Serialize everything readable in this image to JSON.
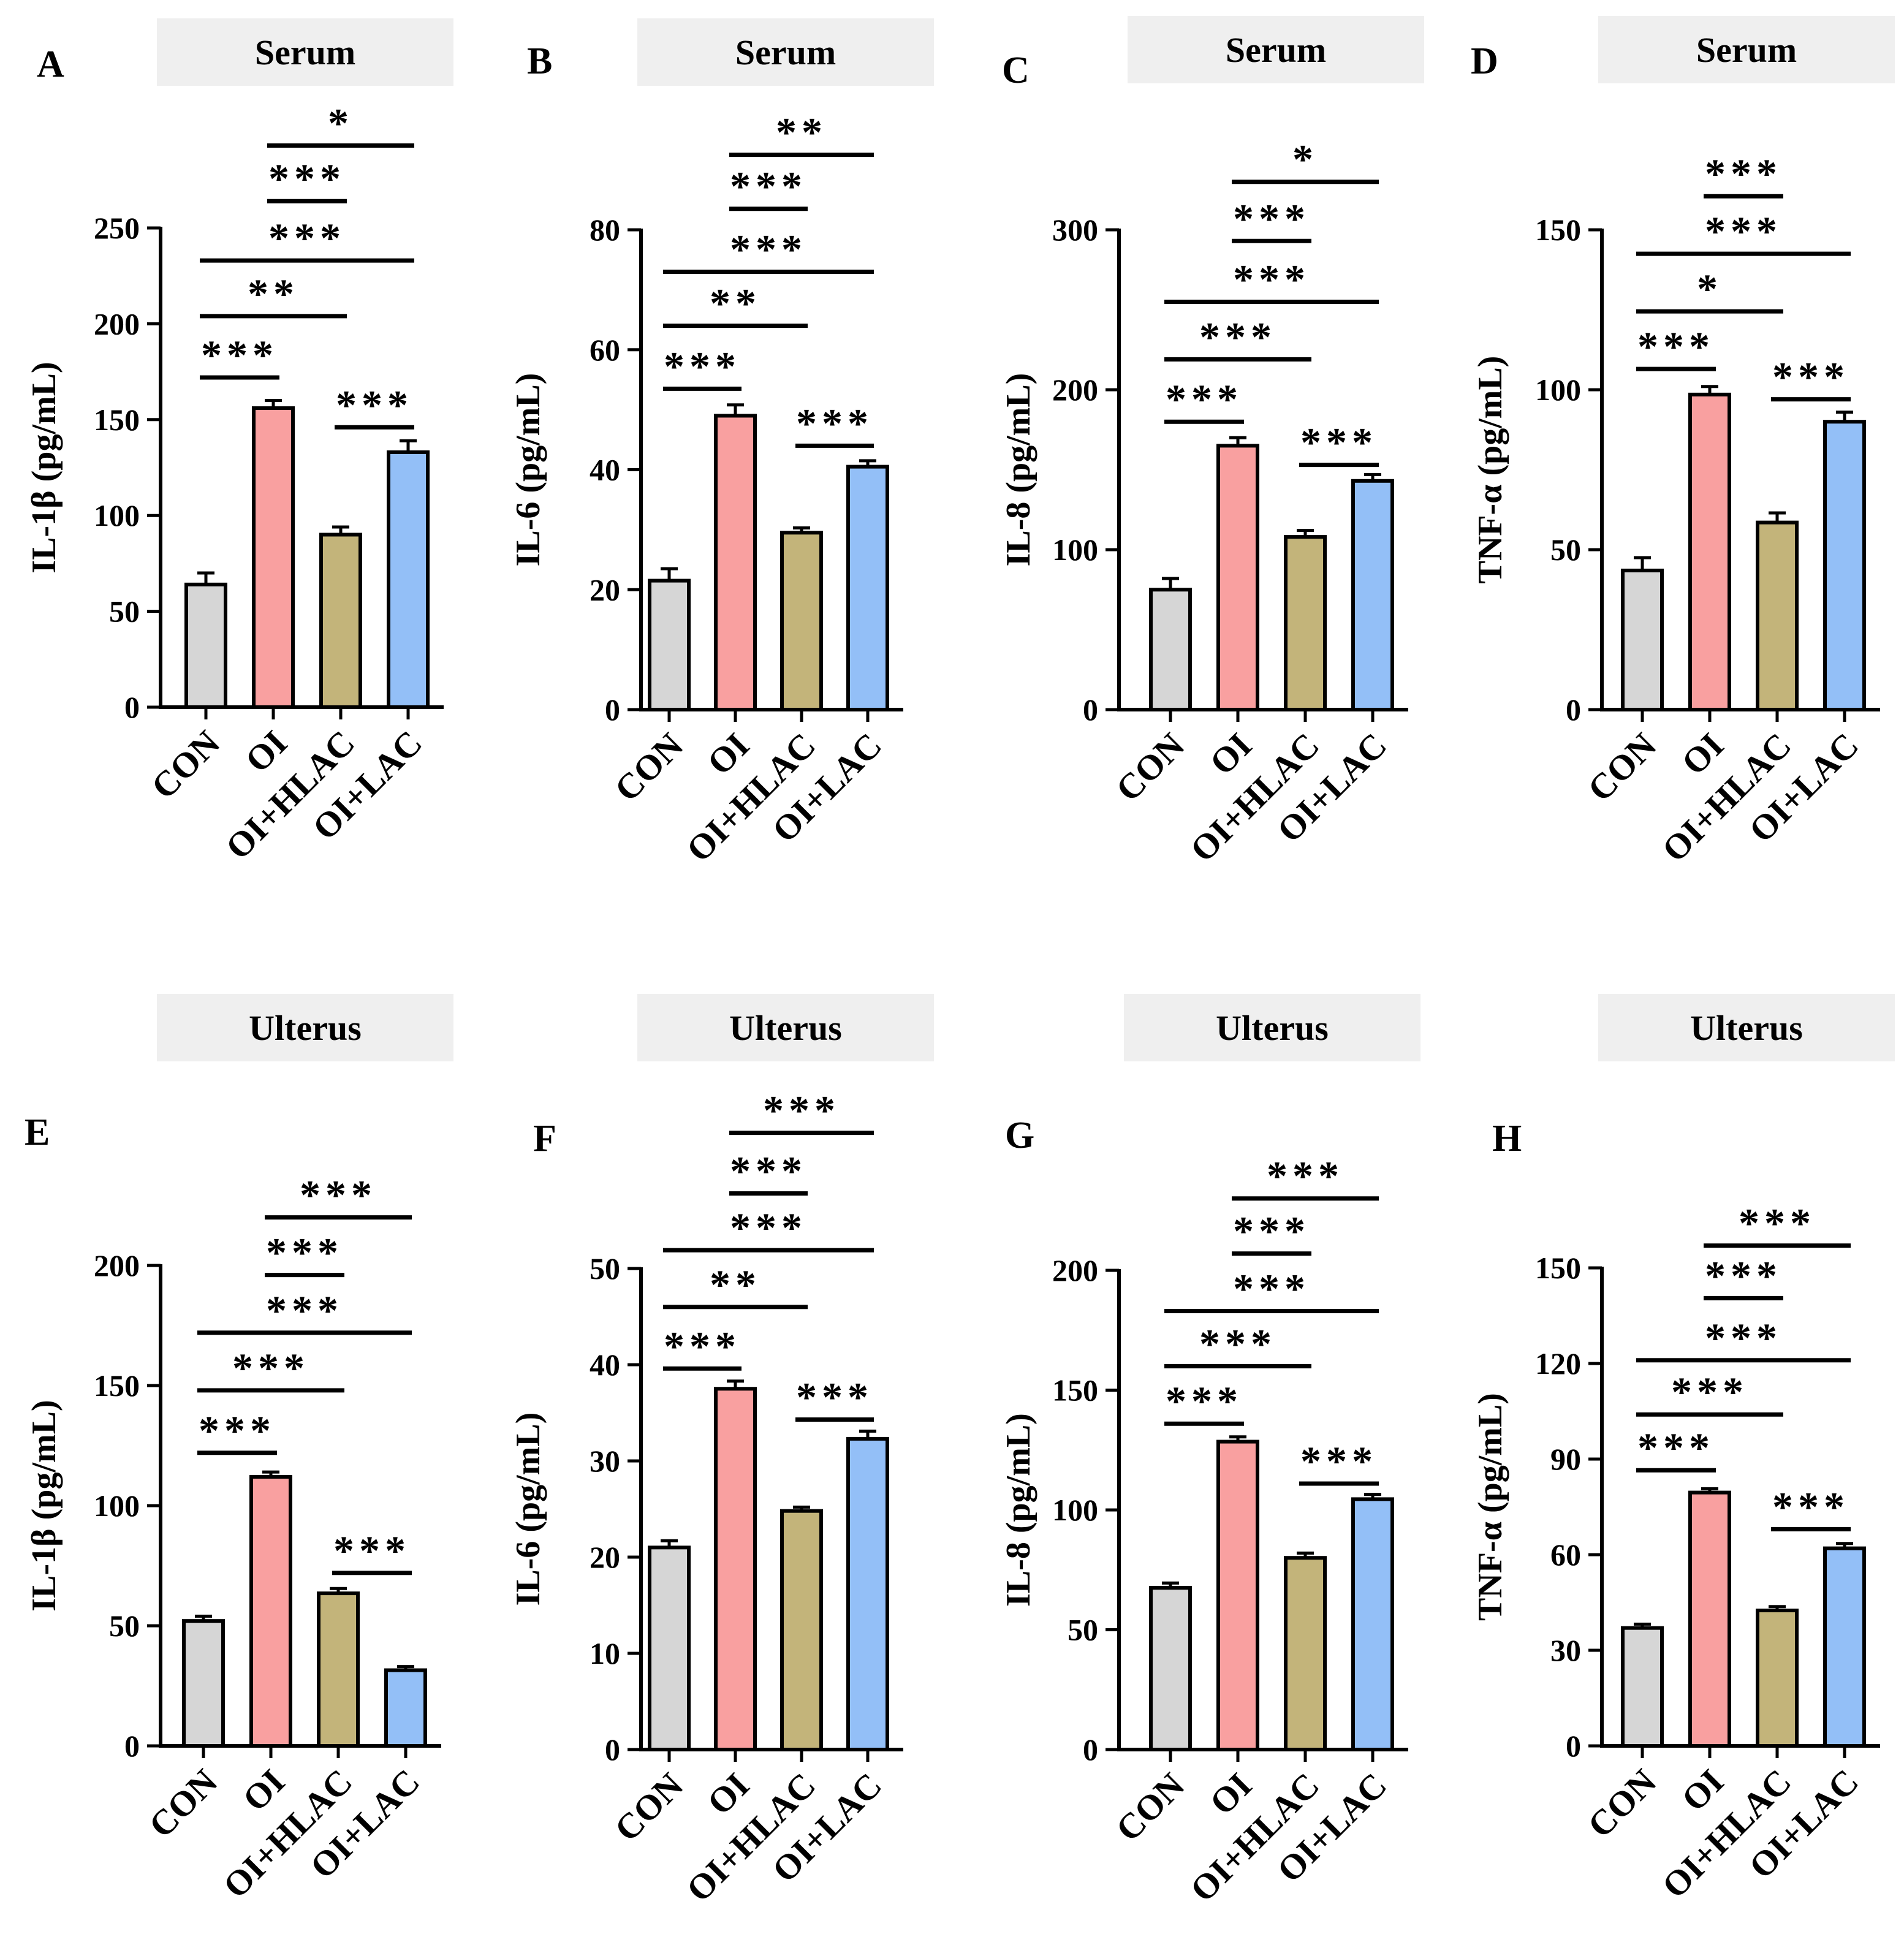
{
  "colors": {
    "CON": "#d6d6d6",
    "OI": "#f9a0a0",
    "OI+HLAC": "#c3b47a",
    "OI+LAC": "#93bff7",
    "header_bg": "#efefef",
    "axis": "#000000"
  },
  "chart_data": [
    {
      "type": "bar",
      "panel": "A",
      "header": "Serum",
      "ylabel": "IL-1β (pg/mL)",
      "categories": [
        "CON",
        "OI",
        "OI+HLAC",
        "OI+LAC"
      ],
      "values": [
        64,
        156,
        90,
        133
      ],
      "errors": [
        6,
        4,
        4,
        6
      ],
      "ylim": [
        0,
        250
      ],
      "yticks": [
        "0",
        "50",
        "100",
        "150",
        "200",
        "250"
      ],
      "significance": [
        {
          "from": 0,
          "to": 1,
          "label": "***",
          "y": 172
        },
        {
          "from": 0,
          "to": 2,
          "label": "**",
          "y": 204
        },
        {
          "from": 0,
          "to": 3,
          "label": "***",
          "y": 233
        },
        {
          "from": 1,
          "to": 2,
          "label": "***",
          "y": 264
        },
        {
          "from": 1,
          "to": 3,
          "label": "*",
          "y": 293
        },
        {
          "from": 2,
          "to": 3,
          "label": "***",
          "y": 146
        }
      ]
    },
    {
      "type": "bar",
      "panel": "B",
      "header": "Serum",
      "ylabel": "IL-6 (pg/mL)",
      "categories": [
        "CON",
        "OI",
        "OI+HLAC",
        "OI+LAC"
      ],
      "values": [
        21.5,
        49,
        29.5,
        40.5
      ],
      "errors": [
        2,
        1.8,
        0.8,
        1
      ],
      "ylim": [
        0,
        80
      ],
      "yticks": [
        "0",
        "20",
        "40",
        "60",
        "80"
      ],
      "significance": [
        {
          "from": 0,
          "to": 1,
          "label": "***",
          "y": 53.5
        },
        {
          "from": 0,
          "to": 2,
          "label": "**",
          "y": 64
        },
        {
          "from": 0,
          "to": 3,
          "label": "***",
          "y": 73
        },
        {
          "from": 1,
          "to": 2,
          "label": "***",
          "y": 83.5
        },
        {
          "from": 1,
          "to": 3,
          "label": "**",
          "y": 92.5
        },
        {
          "from": 2,
          "to": 3,
          "label": "***",
          "y": 44
        }
      ]
    },
    {
      "type": "bar",
      "panel": "C",
      "header": "Serum",
      "ylabel": "IL-8 (pg/mL)",
      "categories": [
        "CON",
        "OI",
        "OI+HLAC",
        "OI+LAC"
      ],
      "values": [
        75,
        165,
        108,
        143
      ],
      "errors": [
        7,
        5,
        4,
        4
      ],
      "ylim": [
        0,
        300
      ],
      "yticks": [
        "0",
        "100",
        "200",
        "300"
      ],
      "significance": [
        {
          "from": 0,
          "to": 1,
          "label": "***",
          "y": 180
        },
        {
          "from": 0,
          "to": 2,
          "label": "***",
          "y": 219
        },
        {
          "from": 0,
          "to": 3,
          "label": "***",
          "y": 255
        },
        {
          "from": 1,
          "to": 2,
          "label": "***",
          "y": 293
        },
        {
          "from": 1,
          "to": 3,
          "label": "*",
          "y": 330
        },
        {
          "from": 2,
          "to": 3,
          "label": "***",
          "y": 153
        }
      ]
    },
    {
      "type": "bar",
      "panel": "D",
      "header": "Serum",
      "ylabel": "TNF-α (pg/mL)",
      "categories": [
        "CON",
        "OI",
        "OI+HLAC",
        "OI+LAC"
      ],
      "values": [
        43.5,
        98.5,
        58.5,
        90
      ],
      "errors": [
        4,
        2.5,
        3,
        3
      ],
      "ylim": [
        0,
        150
      ],
      "yticks": [
        "0",
        "50",
        "100",
        "150"
      ],
      "significance": [
        {
          "from": 0,
          "to": 1,
          "label": "***",
          "y": 106.5
        },
        {
          "from": 0,
          "to": 2,
          "label": "*",
          "y": 124.5
        },
        {
          "from": 0,
          "to": 3,
          "label": "***",
          "y": 142.5
        },
        {
          "from": 1,
          "to": 2,
          "label": "***",
          "y": 160.5
        },
        {
          "from": 2,
          "to": 3,
          "label": "***",
          "y": 97
        }
      ]
    },
    {
      "type": "bar",
      "panel": "E",
      "header": "Ulterus",
      "ylabel": "IL-1β (pg/mL)",
      "categories": [
        "CON",
        "OI",
        "OI+HLAC",
        "OI+LAC"
      ],
      "values": [
        52,
        112,
        63.5,
        31.5
      ],
      "errors": [
        2,
        2,
        2,
        1.5
      ],
      "ylim": [
        0,
        200
      ],
      "yticks": [
        "0",
        "50",
        "100",
        "150",
        "200"
      ],
      "significance": [
        {
          "from": 0,
          "to": 1,
          "label": "***",
          "y": 122
        },
        {
          "from": 0,
          "to": 2,
          "label": "***",
          "y": 148
        },
        {
          "from": 0,
          "to": 3,
          "label": "***",
          "y": 172
        },
        {
          "from": 1,
          "to": 2,
          "label": "***",
          "y": 196
        },
        {
          "from": 1,
          "to": 3,
          "label": "***",
          "y": 220
        },
        {
          "from": 2,
          "to": 3,
          "label": "***",
          "y": 72
        }
      ]
    },
    {
      "type": "bar",
      "panel": "F",
      "header": "Ulterus",
      "ylabel": "IL-6 (pg/mL)",
      "categories": [
        "CON",
        "OI",
        "OI+HLAC",
        "OI+LAC"
      ],
      "values": [
        21,
        37.5,
        24.8,
        32.3
      ],
      "errors": [
        0.7,
        0.8,
        0.4,
        0.8
      ],
      "ylim": [
        0,
        50
      ],
      "yticks": [
        "0",
        "10",
        "20",
        "30",
        "40",
        "50"
      ],
      "significance": [
        {
          "from": 0,
          "to": 1,
          "label": "***",
          "y": 39.6
        },
        {
          "from": 0,
          "to": 2,
          "label": "**",
          "y": 46
        },
        {
          "from": 0,
          "to": 3,
          "label": "***",
          "y": 51.9
        },
        {
          "from": 1,
          "to": 2,
          "label": "***",
          "y": 57.8
        },
        {
          "from": 1,
          "to": 3,
          "label": "***",
          "y": 64.1
        },
        {
          "from": 2,
          "to": 3,
          "label": "***",
          "y": 34.3
        }
      ]
    },
    {
      "type": "bar",
      "panel": "G",
      "header": "Ulterus",
      "ylabel": "IL-8 (pg/mL)",
      "categories": [
        "CON",
        "OI",
        "OI+HLAC",
        "OI+LAC"
      ],
      "values": [
        67.5,
        128.5,
        80,
        104.5
      ],
      "errors": [
        2,
        2,
        2,
        2
      ],
      "ylim": [
        0,
        200
      ],
      "yticks": [
        "0",
        "50",
        "100",
        "150",
        "200"
      ],
      "significance": [
        {
          "from": 0,
          "to": 1,
          "label": "***",
          "y": 136
        },
        {
          "from": 0,
          "to": 2,
          "label": "***",
          "y": 160
        },
        {
          "from": 0,
          "to": 3,
          "label": "***",
          "y": 183
        },
        {
          "from": 1,
          "to": 2,
          "label": "***",
          "y": 207
        },
        {
          "from": 1,
          "to": 3,
          "label": "***",
          "y": 230
        },
        {
          "from": 2,
          "to": 3,
          "label": "***",
          "y": 111
        }
      ]
    },
    {
      "type": "bar",
      "panel": "H",
      "header": "Ulterus",
      "ylabel": "TNF-α (pg/mL)",
      "categories": [
        "CON",
        "OI",
        "OI+HLAC",
        "OI+LAC"
      ],
      "values": [
        37,
        79.5,
        42.5,
        62
      ],
      "errors": [
        1.2,
        1.2,
        1.2,
        1.5
      ],
      "ylim": [
        0,
        150
      ],
      "yticks": [
        "0",
        "30",
        "60",
        "90",
        "120",
        "150"
      ],
      "significance": [
        {
          "from": 0,
          "to": 1,
          "label": "***",
          "y": 86.5
        },
        {
          "from": 0,
          "to": 2,
          "label": "***",
          "y": 104
        },
        {
          "from": 0,
          "to": 3,
          "label": "***",
          "y": 121
        },
        {
          "from": 1,
          "to": 2,
          "label": "***",
          "y": 140.5
        },
        {
          "from": 1,
          "to": 3,
          "label": "***",
          "y": 157
        },
        {
          "from": 2,
          "to": 3,
          "label": "***",
          "y": 68
        }
      ]
    }
  ]
}
